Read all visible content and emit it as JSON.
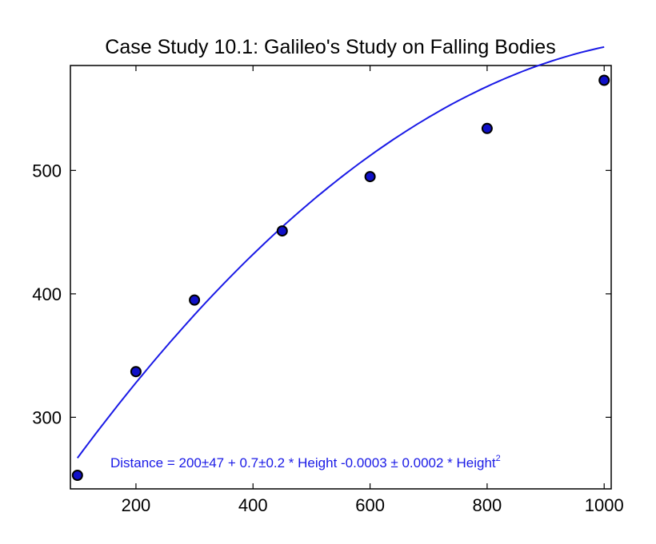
{
  "chart_data": {
    "type": "scatter",
    "title": "Case Study 10.1: Galileo's Study on Falling Bodies",
    "xlabel": "",
    "ylabel": "",
    "xlim": [
      88,
      1012
    ],
    "ylim": [
      242,
      585
    ],
    "x_ticks": [
      200,
      400,
      600,
      800,
      1000
    ],
    "y_ticks": [
      300,
      400,
      500
    ],
    "x_tick_labels": [
      "200",
      "400",
      "600",
      "800",
      "1000"
    ],
    "y_tick_labels": [
      "300",
      "400",
      "500"
    ],
    "grid": false,
    "series": [
      {
        "kind": "points",
        "x": [
          100,
          200,
          300,
          450,
          600,
          800,
          1000
        ],
        "y": [
          253,
          337,
          395,
          451,
          495,
          534,
          573
        ],
        "color": "#1010c8"
      },
      {
        "kind": "fit-line",
        "model": "quadratic",
        "coefficients": [
          200,
          0.7,
          -0.0003
        ],
        "x_range": [
          100,
          1000
        ],
        "color": "#1a1ae6"
      }
    ],
    "annotation": {
      "text": "Distance = 200±47 + 0.7±0.2 * Height -0.0003 ± 0.0002 * Height",
      "superscript": "2",
      "color": "#1a1ae6"
    }
  }
}
